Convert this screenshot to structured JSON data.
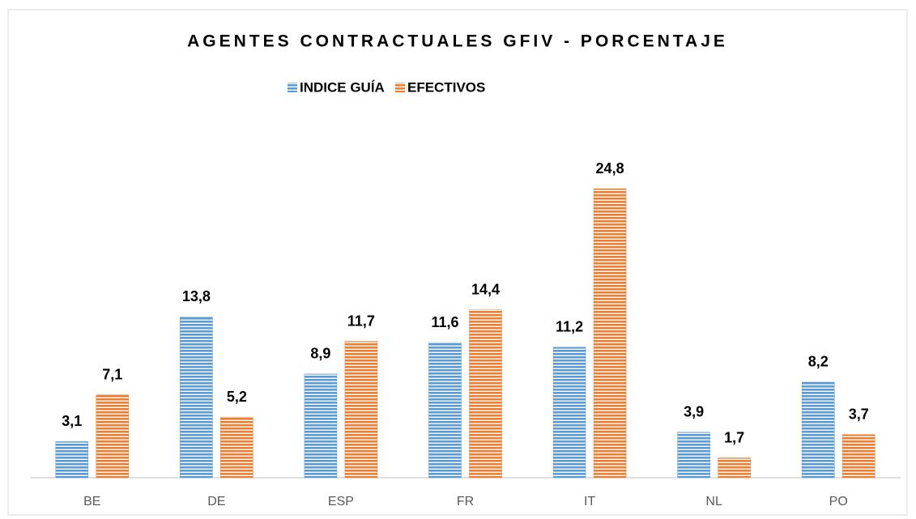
{
  "chart_data": {
    "type": "bar",
    "title": "AGENTES CONTRACTUALES GFIV - PORCENTAJE",
    "categories": [
      "BE",
      "DE",
      "ESP",
      "FR",
      "IT",
      "NL",
      "PO"
    ],
    "series": [
      {
        "name": "INDICE GUÍA",
        "color": "#5b9bd5",
        "values": [
          3.1,
          13.8,
          8.9,
          11.6,
          11.2,
          3.9,
          8.2
        ],
        "value_labels": [
          "3,1",
          "13,8",
          "8,9",
          "11,6",
          "11,2",
          "3,9",
          "8,2"
        ]
      },
      {
        "name": "EFECTIVOS",
        "color": "#ed7d31",
        "values": [
          7.1,
          5.2,
          11.7,
          14.4,
          24.8,
          1.7,
          3.7
        ],
        "value_labels": [
          "7,1",
          "5,2",
          "11,7",
          "14,4",
          "24,8",
          "1,7",
          "3,7"
        ]
      }
    ],
    "ylim": [
      0,
      28
    ],
    "legend": "top"
  }
}
